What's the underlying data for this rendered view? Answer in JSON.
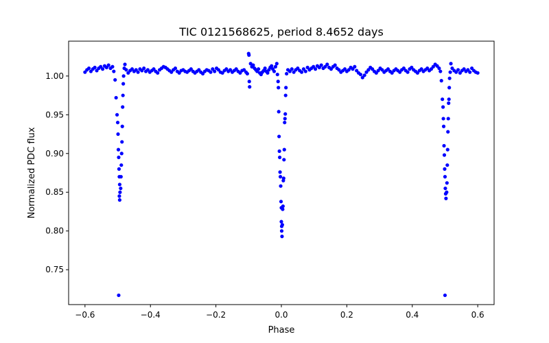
{
  "chart_data": {
    "type": "scatter",
    "title": "TIC 0121568625, period 8.4652 days",
    "xlabel": "Phase",
    "ylabel": "Normalized PDC flux",
    "xlim": [
      -0.65,
      0.65
    ],
    "ylim": [
      0.705,
      1.045
    ],
    "xticks": [
      -0.6,
      -0.4,
      -0.2,
      0.0,
      0.2,
      0.4,
      0.6
    ],
    "xtick_labels": [
      "−0.6",
      "−0.4",
      "−0.2",
      "0.0",
      "0.2",
      "0.4",
      "0.6"
    ],
    "yticks": [
      0.75,
      0.8,
      0.85,
      0.9,
      0.95,
      1.0
    ],
    "ytick_labels": [
      "0.75",
      "0.80",
      "0.85",
      "0.90",
      "0.95",
      "1.00"
    ],
    "grid": false,
    "marker_color": "#0000ff",
    "series": [
      {
        "points": [
          [
            -0.6,
            1.005
          ],
          [
            -0.594,
            1.008
          ],
          [
            -0.588,
            1.01
          ],
          [
            -0.582,
            1.006
          ],
          [
            -0.576,
            1.009
          ],
          [
            -0.57,
            1.011
          ],
          [
            -0.564,
            1.007
          ],
          [
            -0.558,
            1.01
          ],
          [
            -0.552,
            1.012
          ],
          [
            -0.546,
            1.009
          ],
          [
            -0.54,
            1.013
          ],
          [
            -0.534,
            1.011
          ],
          [
            -0.528,
            1.014
          ],
          [
            -0.522,
            1.01
          ],
          [
            -0.516,
            1.012
          ],
          [
            -0.512,
            1.006
          ],
          [
            -0.508,
            0.995
          ],
          [
            -0.505,
            0.972
          ],
          [
            -0.502,
            0.95
          ],
          [
            -0.5,
            0.94
          ],
          [
            -0.499,
            0.925
          ],
          [
            -0.498,
            0.905
          ],
          [
            -0.497,
            0.895
          ],
          [
            -0.496,
            0.88
          ],
          [
            -0.495,
            0.87
          ],
          [
            -0.494,
            0.86
          ],
          [
            -0.493,
            0.85
          ],
          [
            -0.495,
            0.845
          ],
          [
            -0.494,
            0.84
          ],
          [
            -0.497,
            0.717
          ],
          [
            -0.491,
            0.855
          ],
          [
            -0.49,
            0.87
          ],
          [
            -0.489,
            0.885
          ],
          [
            -0.488,
            0.9
          ],
          [
            -0.487,
            0.915
          ],
          [
            -0.486,
            0.935
          ],
          [
            -0.485,
            0.96
          ],
          [
            -0.484,
            0.975
          ],
          [
            -0.483,
            0.99
          ],
          [
            -0.482,
            1.0
          ],
          [
            -0.48,
            1.01
          ],
          [
            -0.478,
            1.015
          ],
          [
            -0.474,
            1.008
          ],
          [
            -0.468,
            1.004
          ],
          [
            -0.462,
            1.007
          ],
          [
            -0.456,
            1.009
          ],
          [
            -0.45,
            1.006
          ],
          [
            -0.444,
            1.008
          ],
          [
            -0.438,
            1.005
          ],
          [
            -0.432,
            1.009
          ],
          [
            -0.426,
            1.007
          ],
          [
            -0.42,
            1.01
          ],
          [
            -0.414,
            1.006
          ],
          [
            -0.408,
            1.008
          ],
          [
            -0.402,
            1.005
          ],
          [
            -0.396,
            1.007
          ],
          [
            -0.39,
            1.009
          ],
          [
            -0.384,
            1.006
          ],
          [
            -0.378,
            1.004
          ],
          [
            -0.372,
            1.008
          ],
          [
            -0.366,
            1.01
          ],
          [
            -0.36,
            1.012
          ],
          [
            -0.354,
            1.011
          ],
          [
            -0.348,
            1.009
          ],
          [
            -0.342,
            1.007
          ],
          [
            -0.336,
            1.005
          ],
          [
            -0.33,
            1.008
          ],
          [
            -0.324,
            1.01
          ],
          [
            -0.318,
            1.006
          ],
          [
            -0.312,
            1.004
          ],
          [
            -0.306,
            1.007
          ],
          [
            -0.3,
            1.008
          ],
          [
            -0.294,
            1.006
          ],
          [
            -0.288,
            1.005
          ],
          [
            -0.282,
            1.007
          ],
          [
            -0.276,
            1.009
          ],
          [
            -0.27,
            1.006
          ],
          [
            -0.264,
            1.004
          ],
          [
            -0.258,
            1.006
          ],
          [
            -0.252,
            1.008
          ],
          [
            -0.246,
            1.005
          ],
          [
            -0.24,
            1.003
          ],
          [
            -0.234,
            1.006
          ],
          [
            -0.228,
            1.008
          ],
          [
            -0.222,
            1.007
          ],
          [
            -0.216,
            1.005
          ],
          [
            -0.21,
            1.009
          ],
          [
            -0.204,
            1.006
          ],
          [
            -0.198,
            1.01
          ],
          [
            -0.192,
            1.008
          ],
          [
            -0.186,
            1.005
          ],
          [
            -0.18,
            1.004
          ],
          [
            -0.174,
            1.007
          ],
          [
            -0.168,
            1.009
          ],
          [
            -0.162,
            1.006
          ],
          [
            -0.156,
            1.008
          ],
          [
            -0.15,
            1.005
          ],
          [
            -0.144,
            1.007
          ],
          [
            -0.138,
            1.009
          ],
          [
            -0.132,
            1.006
          ],
          [
            -0.126,
            1.004
          ],
          [
            -0.12,
            1.007
          ],
          [
            -0.114,
            1.008
          ],
          [
            -0.108,
            1.005
          ],
          [
            -0.104,
            1.003
          ],
          [
            -0.1,
            1.029
          ],
          [
            -0.099,
            1.027
          ],
          [
            -0.098,
            0.993
          ],
          [
            -0.097,
            0.986
          ],
          [
            -0.094,
            1.016
          ],
          [
            -0.09,
            1.012
          ],
          [
            -0.086,
            1.014
          ],
          [
            -0.082,
            1.01
          ],
          [
            -0.078,
            1.008
          ],
          [
            -0.074,
            1.006
          ],
          [
            -0.07,
            1.009
          ],
          [
            -0.066,
            1.004
          ],
          [
            -0.062,
            1.002
          ],
          [
            -0.058,
            1.005
          ],
          [
            -0.054,
            1.007
          ],
          [
            -0.05,
            1.01
          ],
          [
            -0.046,
            1.006
          ],
          [
            -0.042,
            1.004
          ],
          [
            -0.038,
            1.008
          ],
          [
            -0.034,
            1.011
          ],
          [
            -0.03,
            1.013
          ],
          [
            -0.026,
            1.009
          ],
          [
            -0.022,
            1.006
          ],
          [
            -0.018,
            1.012
          ],
          [
            -0.014,
            1.016
          ],
          [
            -0.012,
            1.002
          ],
          [
            -0.01,
            0.993
          ],
          [
            -0.009,
            0.985
          ],
          [
            -0.008,
            0.954
          ],
          [
            -0.007,
            0.922
          ],
          [
            -0.006,
            0.903
          ],
          [
            -0.005,
            0.895
          ],
          [
            -0.004,
            0.876
          ],
          [
            -0.003,
            0.87
          ],
          [
            -0.002,
            0.858
          ],
          [
            -0.001,
            0.838
          ],
          [
            0.0,
            0.83
          ],
          [
            0.0,
            0.812
          ],
          [
            0.001,
            0.806
          ],
          [
            0.001,
            0.8
          ],
          [
            0.002,
            0.793
          ],
          [
            0.003,
            0.808
          ],
          [
            0.004,
            0.828
          ],
          [
            0.005,
            0.832
          ],
          [
            0.006,
            0.865
          ],
          [
            0.007,
            0.868
          ],
          [
            0.008,
            0.892
          ],
          [
            0.009,
            0.905
          ],
          [
            0.01,
            0.94
          ],
          [
            0.011,
            0.945
          ],
          [
            0.012,
            0.951
          ],
          [
            0.013,
            0.975
          ],
          [
            0.014,
            0.985
          ],
          [
            0.016,
            1.003
          ],
          [
            0.02,
            1.008
          ],
          [
            0.026,
            1.006
          ],
          [
            0.032,
            1.009
          ],
          [
            0.038,
            1.005
          ],
          [
            0.044,
            1.008
          ],
          [
            0.05,
            1.01
          ],
          [
            0.056,
            1.007
          ],
          [
            0.062,
            1.005
          ],
          [
            0.068,
            1.009
          ],
          [
            0.074,
            1.006
          ],
          [
            0.08,
            1.011
          ],
          [
            0.086,
            1.008
          ],
          [
            0.092,
            1.01
          ],
          [
            0.098,
            1.012
          ],
          [
            0.104,
            1.009
          ],
          [
            0.11,
            1.013
          ],
          [
            0.116,
            1.011
          ],
          [
            0.122,
            1.014
          ],
          [
            0.128,
            1.01
          ],
          [
            0.134,
            1.012
          ],
          [
            0.14,
            1.015
          ],
          [
            0.146,
            1.011
          ],
          [
            0.152,
            1.009
          ],
          [
            0.158,
            1.012
          ],
          [
            0.164,
            1.014
          ],
          [
            0.17,
            1.01
          ],
          [
            0.176,
            1.008
          ],
          [
            0.182,
            1.005
          ],
          [
            0.188,
            1.007
          ],
          [
            0.194,
            1.009
          ],
          [
            0.2,
            1.006
          ],
          [
            0.206,
            1.008
          ],
          [
            0.212,
            1.011
          ],
          [
            0.218,
            1.009
          ],
          [
            0.224,
            1.012
          ],
          [
            0.23,
            1.007
          ],
          [
            0.236,
            1.004
          ],
          [
            0.242,
            1.002
          ],
          [
            0.248,
            0.998
          ],
          [
            0.254,
            1.001
          ],
          [
            0.26,
            1.005
          ],
          [
            0.266,
            1.008
          ],
          [
            0.272,
            1.011
          ],
          [
            0.278,
            1.009
          ],
          [
            0.284,
            1.006
          ],
          [
            0.29,
            1.004
          ],
          [
            0.296,
            1.007
          ],
          [
            0.302,
            1.01
          ],
          [
            0.308,
            1.008
          ],
          [
            0.314,
            1.005
          ],
          [
            0.32,
            1.007
          ],
          [
            0.326,
            1.009
          ],
          [
            0.332,
            1.006
          ],
          [
            0.338,
            1.004
          ],
          [
            0.344,
            1.007
          ],
          [
            0.35,
            1.009
          ],
          [
            0.356,
            1.007
          ],
          [
            0.362,
            1.005
          ],
          [
            0.368,
            1.008
          ],
          [
            0.374,
            1.01
          ],
          [
            0.38,
            1.007
          ],
          [
            0.386,
            1.005
          ],
          [
            0.392,
            1.009
          ],
          [
            0.398,
            1.011
          ],
          [
            0.404,
            1.008
          ],
          [
            0.41,
            1.006
          ],
          [
            0.416,
            1.004
          ],
          [
            0.422,
            1.007
          ],
          [
            0.428,
            1.009
          ],
          [
            0.434,
            1.006
          ],
          [
            0.44,
            1.008
          ],
          [
            0.446,
            1.01
          ],
          [
            0.452,
            1.007
          ],
          [
            0.458,
            1.009
          ],
          [
            0.464,
            1.012
          ],
          [
            0.47,
            1.015
          ],
          [
            0.476,
            1.013
          ],
          [
            0.482,
            1.01
          ],
          [
            0.486,
            1.006
          ],
          [
            0.489,
            0.994
          ],
          [
            0.492,
            0.97
          ],
          [
            0.494,
            0.96
          ],
          [
            0.495,
            0.945
          ],
          [
            0.496,
            0.935
          ],
          [
            0.497,
            0.91
          ],
          [
            0.498,
            0.898
          ],
          [
            0.499,
            0.88
          ],
          [
            0.5,
            0.87
          ],
          [
            0.501,
            0.855
          ],
          [
            0.502,
            0.848
          ],
          [
            0.503,
            0.842
          ],
          [
            0.5,
            0.717
          ],
          [
            0.505,
            0.85
          ],
          [
            0.506,
            0.862
          ],
          [
            0.507,
            0.885
          ],
          [
            0.508,
            0.905
          ],
          [
            0.509,
            0.928
          ],
          [
            0.51,
            0.945
          ],
          [
            0.511,
            0.965
          ],
          [
            0.512,
            0.97
          ],
          [
            0.513,
            0.985
          ],
          [
            0.514,
            0.997
          ],
          [
            0.516,
            1.005
          ],
          [
            0.518,
            1.016
          ],
          [
            0.522,
            1.01
          ],
          [
            0.528,
            1.007
          ],
          [
            0.534,
            1.005
          ],
          [
            0.54,
            1.008
          ],
          [
            0.546,
            1.004
          ],
          [
            0.552,
            1.007
          ],
          [
            0.558,
            1.009
          ],
          [
            0.564,
            1.006
          ],
          [
            0.57,
            1.008
          ],
          [
            0.576,
            1.005
          ],
          [
            0.582,
            1.01
          ],
          [
            0.588,
            1.007
          ],
          [
            0.594,
            1.005
          ],
          [
            0.6,
            1.004
          ]
        ]
      }
    ]
  }
}
